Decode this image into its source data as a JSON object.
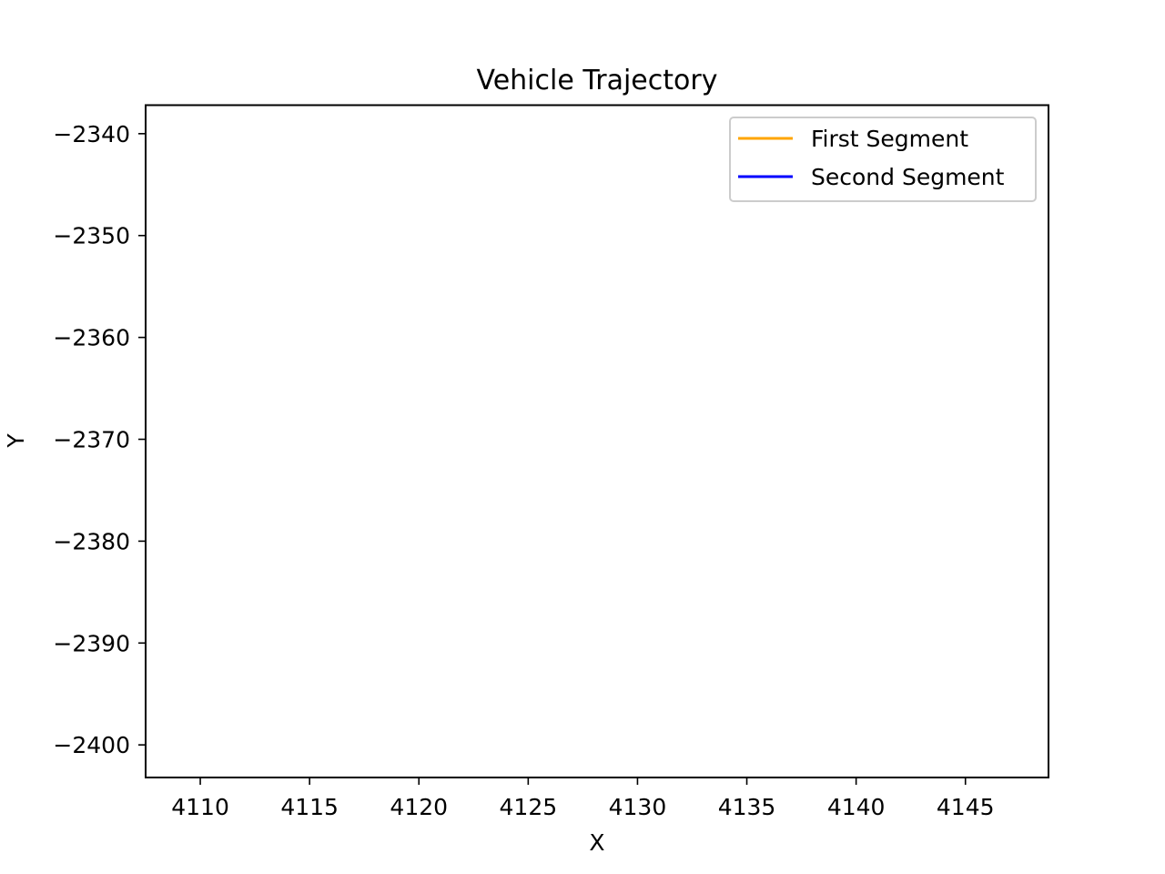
{
  "chart_data": {
    "type": "line",
    "title": "Vehicle Trajectory",
    "xlabel": "X",
    "ylabel": "Y",
    "xlim": [
      4107.5,
      4148.8
    ],
    "ylim": [
      -2403.2,
      -2337.2
    ],
    "x_ticks": [
      4110,
      4115,
      4120,
      4125,
      4130,
      4135,
      4140,
      4145
    ],
    "y_ticks": [
      -2340,
      -2350,
      -2360,
      -2370,
      -2380,
      -2390,
      -2400
    ],
    "grid": false,
    "legend_position": "upper right",
    "series": [
      {
        "name": "First Segment",
        "color": "#ffa500",
        "x": [],
        "y": []
      },
      {
        "name": "Second Segment",
        "color": "#0000ff",
        "x": [],
        "y": []
      }
    ]
  }
}
